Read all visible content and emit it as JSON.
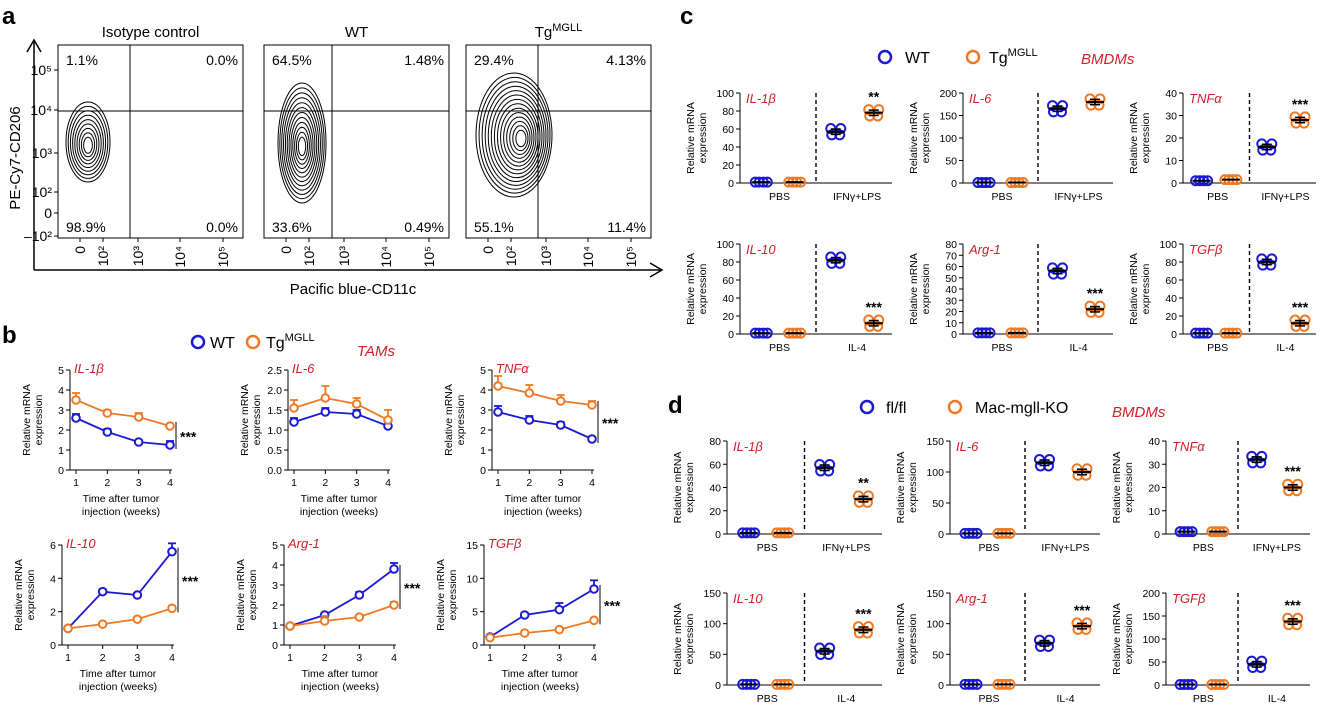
{
  "colors": {
    "wt": "#1a1ad4",
    "tg": "#f07a24",
    "gene": "#d0202a"
  },
  "panel_a": {
    "label": "a",
    "y_axis_label": "PE-Cy7-CD206",
    "x_axis_label": "Pacific blue-CD11c",
    "y_ticks": [
      "10⁵",
      "10⁴",
      "10³",
      "10²",
      "0",
      "–10²"
    ],
    "x_ticks": [
      "0",
      "10²",
      "10³",
      "10⁴",
      "10⁵"
    ],
    "plots": [
      {
        "title": "Isotype control",
        "q": [
          "1.1%",
          "0.0%",
          "98.9%",
          "0.0%"
        ]
      },
      {
        "title": "WT",
        "q": [
          "64.5%",
          "1.48%",
          "33.6%",
          "0.49%"
        ]
      },
      {
        "title": "TgMGLL",
        "q": [
          "29.4%",
          "4.13%",
          "55.1%",
          "11.4%"
        ]
      }
    ]
  },
  "panel_b": {
    "label": "b",
    "legend": {
      "wt": "WT",
      "tg": "Tg",
      "tg_sup": "MGLL"
    },
    "context": "TAMs",
    "y_label_1": "Relative mRNA",
    "y_label_2": "expression",
    "x_label_1": "Time after tumor",
    "x_label_2": "injection (weeks)",
    "sig": "***"
  },
  "panel_c": {
    "label": "c",
    "legend": {
      "wt": "WT",
      "tg": "Tg",
      "tg_sup": "MGLL"
    },
    "context": "BMDMs",
    "y_label_1": "Relative mRNA",
    "y_label_2": "expression",
    "groups_top": [
      "PBS",
      "IFNγ+LPS"
    ],
    "groups_bottom": [
      "PBS",
      "IL-4"
    ]
  },
  "panel_d": {
    "label": "d",
    "legend": {
      "wt": "fl/fl",
      "tg": "Mac-mgll-KO"
    },
    "context": "BMDMs",
    "y_label_1": "Relative mRNA",
    "y_label_2": "expression",
    "groups_top": [
      "PBS",
      "IFNγ+LPS"
    ],
    "groups_bottom": [
      "PBS",
      "IL-4"
    ]
  },
  "chart_data": [
    {
      "panel": "b",
      "type": "line",
      "gene": "IL-1β",
      "x": [
        1,
        2,
        3,
        4
      ],
      "ylim": [
        0,
        5
      ],
      "yticks": [
        0,
        1,
        2,
        3,
        4,
        5
      ],
      "sig": "***",
      "series": [
        {
          "name": "WT",
          "values": [
            2.6,
            1.9,
            1.4,
            1.25
          ],
          "err": [
            0.2,
            0.15,
            0.1,
            0.2
          ]
        },
        {
          "name": "TgMGLL",
          "values": [
            3.5,
            2.85,
            2.65,
            2.2
          ],
          "err": [
            0.35,
            0.15,
            0.2,
            0.1
          ]
        }
      ]
    },
    {
      "panel": "b",
      "type": "line",
      "gene": "IL-6",
      "x": [
        1,
        2,
        3,
        4
      ],
      "ylim": [
        0,
        2.5
      ],
      "yticks": [
        0,
        0.5,
        1.0,
        1.5,
        2.0,
        2.5
      ],
      "sig": "",
      "series": [
        {
          "name": "WT",
          "values": [
            1.2,
            1.45,
            1.4,
            1.1
          ],
          "err": [
            0.1,
            0.1,
            0.1,
            0.1
          ]
        },
        {
          "name": "TgMGLL",
          "values": [
            1.55,
            1.8,
            1.65,
            1.25
          ],
          "err": [
            0.2,
            0.3,
            0.15,
            0.25
          ]
        }
      ]
    },
    {
      "panel": "b",
      "type": "line",
      "gene": "TNFα",
      "x": [
        1,
        2,
        3,
        4
      ],
      "ylim": [
        0,
        5
      ],
      "yticks": [
        0,
        1,
        2,
        3,
        4,
        5
      ],
      "sig": "***",
      "series": [
        {
          "name": "WT",
          "values": [
            2.9,
            2.5,
            2.25,
            1.55
          ],
          "err": [
            0.3,
            0.2,
            0.15,
            0.1
          ]
        },
        {
          "name": "TgMGLL",
          "values": [
            4.2,
            3.85,
            3.45,
            3.25
          ],
          "err": [
            0.5,
            0.4,
            0.3,
            0.2
          ]
        }
      ]
    },
    {
      "panel": "b",
      "type": "line",
      "gene": "IL-10",
      "x": [
        1,
        2,
        3,
        4
      ],
      "ylim": [
        0,
        6
      ],
      "yticks": [
        0,
        2,
        4,
        6
      ],
      "sig": "***",
      "series": [
        {
          "name": "WT",
          "values": [
            1.0,
            3.2,
            3.0,
            5.6
          ],
          "err": [
            0.1,
            0.15,
            0.1,
            0.5
          ]
        },
        {
          "name": "TgMGLL",
          "values": [
            1.0,
            1.25,
            1.55,
            2.2
          ],
          "err": [
            0.1,
            0.1,
            0.1,
            0.15
          ]
        }
      ]
    },
    {
      "panel": "b",
      "type": "line",
      "gene": "Arg-1",
      "x": [
        1,
        2,
        3,
        4
      ],
      "ylim": [
        0,
        5
      ],
      "yticks": [
        0,
        1,
        2,
        3,
        4,
        5
      ],
      "sig": "***",
      "series": [
        {
          "name": "WT",
          "values": [
            0.95,
            1.5,
            2.5,
            3.8
          ],
          "err": [
            0.05,
            0.1,
            0.15,
            0.3
          ]
        },
        {
          "name": "TgMGLL",
          "values": [
            0.95,
            1.2,
            1.4,
            2.0
          ],
          "err": [
            0.1,
            0.25,
            0.1,
            0.15
          ]
        }
      ]
    },
    {
      "panel": "b",
      "type": "line",
      "gene": "TGFβ",
      "x": [
        1,
        2,
        3,
        4
      ],
      "ylim": [
        0,
        15
      ],
      "yticks": [
        0,
        5,
        10,
        15
      ],
      "sig": "***",
      "series": [
        {
          "name": "WT",
          "values": [
            1.2,
            4.5,
            5.3,
            8.4
          ],
          "err": [
            0.2,
            0.3,
            1.0,
            1.3
          ]
        },
        {
          "name": "TgMGLL",
          "values": [
            1.1,
            1.8,
            2.3,
            3.7
          ],
          "err": [
            0.1,
            0.2,
            0.2,
            0.2
          ]
        }
      ]
    },
    {
      "panel": "c",
      "type": "scatter",
      "gene": "IL-1β",
      "groups": [
        "PBS",
        "IFNγ+LPS"
      ],
      "ylim": [
        0,
        100
      ],
      "yticks": [
        0,
        20,
        40,
        60,
        80,
        100
      ],
      "sig": "**",
      "series": [
        {
          "name": "WT",
          "values": [
            1,
            57
          ]
        },
        {
          "name": "TgMGLL",
          "values": [
            1,
            78
          ]
        }
      ]
    },
    {
      "panel": "c",
      "type": "scatter",
      "gene": "IL-6",
      "groups": [
        "PBS",
        "IFNγ+LPS"
      ],
      "ylim": [
        0,
        200
      ],
      "yticks": [
        0,
        50,
        100,
        150,
        200
      ],
      "sig": "",
      "series": [
        {
          "name": "WT",
          "values": [
            1,
            165
          ]
        },
        {
          "name": "TgMGLL",
          "values": [
            1,
            180
          ]
        }
      ]
    },
    {
      "panel": "c",
      "type": "scatter",
      "gene": "TNFα",
      "groups": [
        "PBS",
        "IFNγ+LPS"
      ],
      "ylim": [
        0,
        40
      ],
      "yticks": [
        0,
        10,
        20,
        30,
        40
      ],
      "sig": "***",
      "series": [
        {
          "name": "WT",
          "values": [
            1,
            16
          ]
        },
        {
          "name": "TgMGLL",
          "values": [
            1.5,
            28
          ]
        }
      ]
    },
    {
      "panel": "c",
      "type": "scatter",
      "gene": "IL-10",
      "groups": [
        "PBS",
        "IL-4"
      ],
      "ylim": [
        0,
        100
      ],
      "yticks": [
        0,
        20,
        40,
        60,
        80,
        100
      ],
      "sig": "***",
      "series": [
        {
          "name": "WT",
          "values": [
            1,
            82
          ]
        },
        {
          "name": "TgMGLL",
          "values": [
            1,
            12
          ]
        }
      ]
    },
    {
      "panel": "c",
      "type": "scatter",
      "gene": "Arg-1",
      "groups": [
        "PBS",
        "IL-4"
      ],
      "ylim": [
        0,
        80
      ],
      "yticks": [
        0,
        10,
        20,
        30,
        40,
        50,
        60,
        70,
        80
      ],
      "sig": "***",
      "series": [
        {
          "name": "WT",
          "values": [
            1,
            56
          ]
        },
        {
          "name": "TgMGLL",
          "values": [
            1,
            22
          ]
        }
      ]
    },
    {
      "panel": "c",
      "type": "scatter",
      "gene": "TGFβ",
      "groups": [
        "PBS",
        "IL-4"
      ],
      "ylim": [
        0,
        100
      ],
      "yticks": [
        0,
        20,
        40,
        60,
        80,
        100
      ],
      "sig": "***",
      "series": [
        {
          "name": "WT",
          "values": [
            1,
            80
          ]
        },
        {
          "name": "TgMGLL",
          "values": [
            1,
            12
          ]
        }
      ]
    },
    {
      "panel": "d",
      "type": "scatter",
      "gene": "IL-1β",
      "groups": [
        "PBS",
        "IFNγ+LPS"
      ],
      "ylim": [
        0,
        80
      ],
      "yticks": [
        0,
        20,
        40,
        60,
        80
      ],
      "sig": "**",
      "series": [
        {
          "name": "fl/fl",
          "values": [
            1,
            57
          ]
        },
        {
          "name": "Mac-mgll-KO",
          "values": [
            1,
            30
          ]
        }
      ]
    },
    {
      "panel": "d",
      "type": "scatter",
      "gene": "IL-6",
      "groups": [
        "PBS",
        "IFNγ+LPS"
      ],
      "ylim": [
        0,
        150
      ],
      "yticks": [
        0,
        50,
        100,
        150
      ],
      "sig": "",
      "series": [
        {
          "name": "fl/fl",
          "values": [
            1,
            115
          ]
        },
        {
          "name": "Mac-mgll-KO",
          "values": [
            1,
            100
          ]
        }
      ]
    },
    {
      "panel": "d",
      "type": "scatter",
      "gene": "TNFα",
      "groups": [
        "PBS",
        "IFNγ+LPS"
      ],
      "ylim": [
        0,
        40
      ],
      "yticks": [
        0,
        10,
        20,
        30,
        40
      ],
      "sig": "***",
      "series": [
        {
          "name": "fl/fl",
          "values": [
            1,
            32
          ]
        },
        {
          "name": "Mac-mgll-KO",
          "values": [
            1,
            20
          ]
        }
      ]
    },
    {
      "panel": "d",
      "type": "scatter",
      "gene": "IL-10",
      "groups": [
        "PBS",
        "IL-4"
      ],
      "ylim": [
        0,
        150
      ],
      "yticks": [
        0,
        50,
        100,
        150
      ],
      "sig": "***",
      "series": [
        {
          "name": "fl/fl",
          "values": [
            1,
            55
          ]
        },
        {
          "name": "Mac-mgll-KO",
          "values": [
            1,
            90
          ]
        }
      ]
    },
    {
      "panel": "d",
      "type": "scatter",
      "gene": "Arg-1",
      "groups": [
        "PBS",
        "IL-4"
      ],
      "ylim": [
        0,
        150
      ],
      "yticks": [
        0,
        50,
        100,
        150
      ],
      "sig": "***",
      "series": [
        {
          "name": "fl/fl",
          "values": [
            1,
            68
          ]
        },
        {
          "name": "Mac-mgll-KO",
          "values": [
            1,
            96
          ]
        }
      ]
    },
    {
      "panel": "d",
      "type": "scatter",
      "gene": "TGFβ",
      "groups": [
        "PBS",
        "IL-4"
      ],
      "ylim": [
        0,
        200
      ],
      "yticks": [
        0,
        50,
        100,
        150,
        200
      ],
      "sig": "***",
      "series": [
        {
          "name": "fl/fl",
          "values": [
            1,
            45
          ]
        },
        {
          "name": "Mac-mgll-KO",
          "values": [
            1,
            138
          ]
        }
      ]
    }
  ]
}
